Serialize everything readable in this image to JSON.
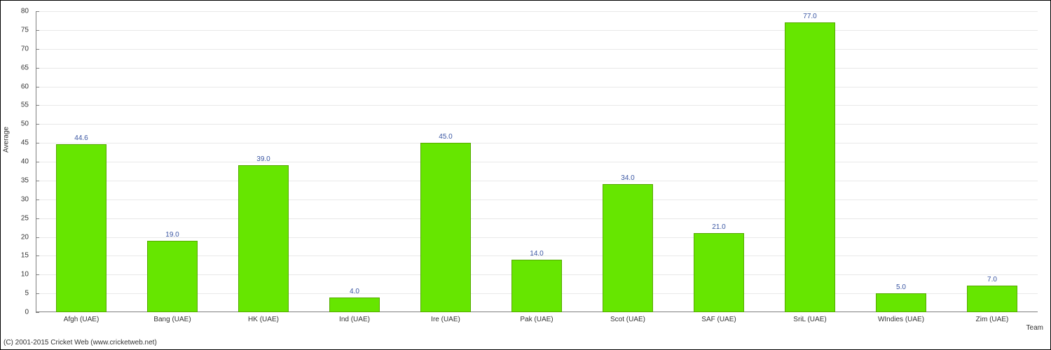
{
  "chart": {
    "type": "bar",
    "ylabel": "Average",
    "xlabel": "Team",
    "ylim": [
      0,
      80
    ],
    "ytick_step": 5,
    "categories": [
      "Afgh (UAE)",
      "Bang (UAE)",
      "HK (UAE)",
      "Ind (UAE)",
      "Ire (UAE)",
      "Pak (UAE)",
      "Scot (UAE)",
      "SAF (UAE)",
      "SriL (UAE)",
      "WIndies (UAE)",
      "Zim (UAE)"
    ],
    "values": [
      44.6,
      19.0,
      39.0,
      4.0,
      45.0,
      14.0,
      34.0,
      21.0,
      77.0,
      5.0,
      7.0
    ],
    "bar_color": "#66e600",
    "bar_border_color": "#55aa00",
    "grid_color": "#e8e8e8",
    "axis_color": "#808080",
    "background_color": "#ffffff",
    "value_label_color": "#3955a2",
    "tick_label_color": "#333333",
    "bar_width_ratio": 0.56,
    "label_fontsize": 10,
    "value_fontsize": 10
  },
  "copyright": "(C) 2001-2015 Cricket Web (www.cricketweb.net)"
}
